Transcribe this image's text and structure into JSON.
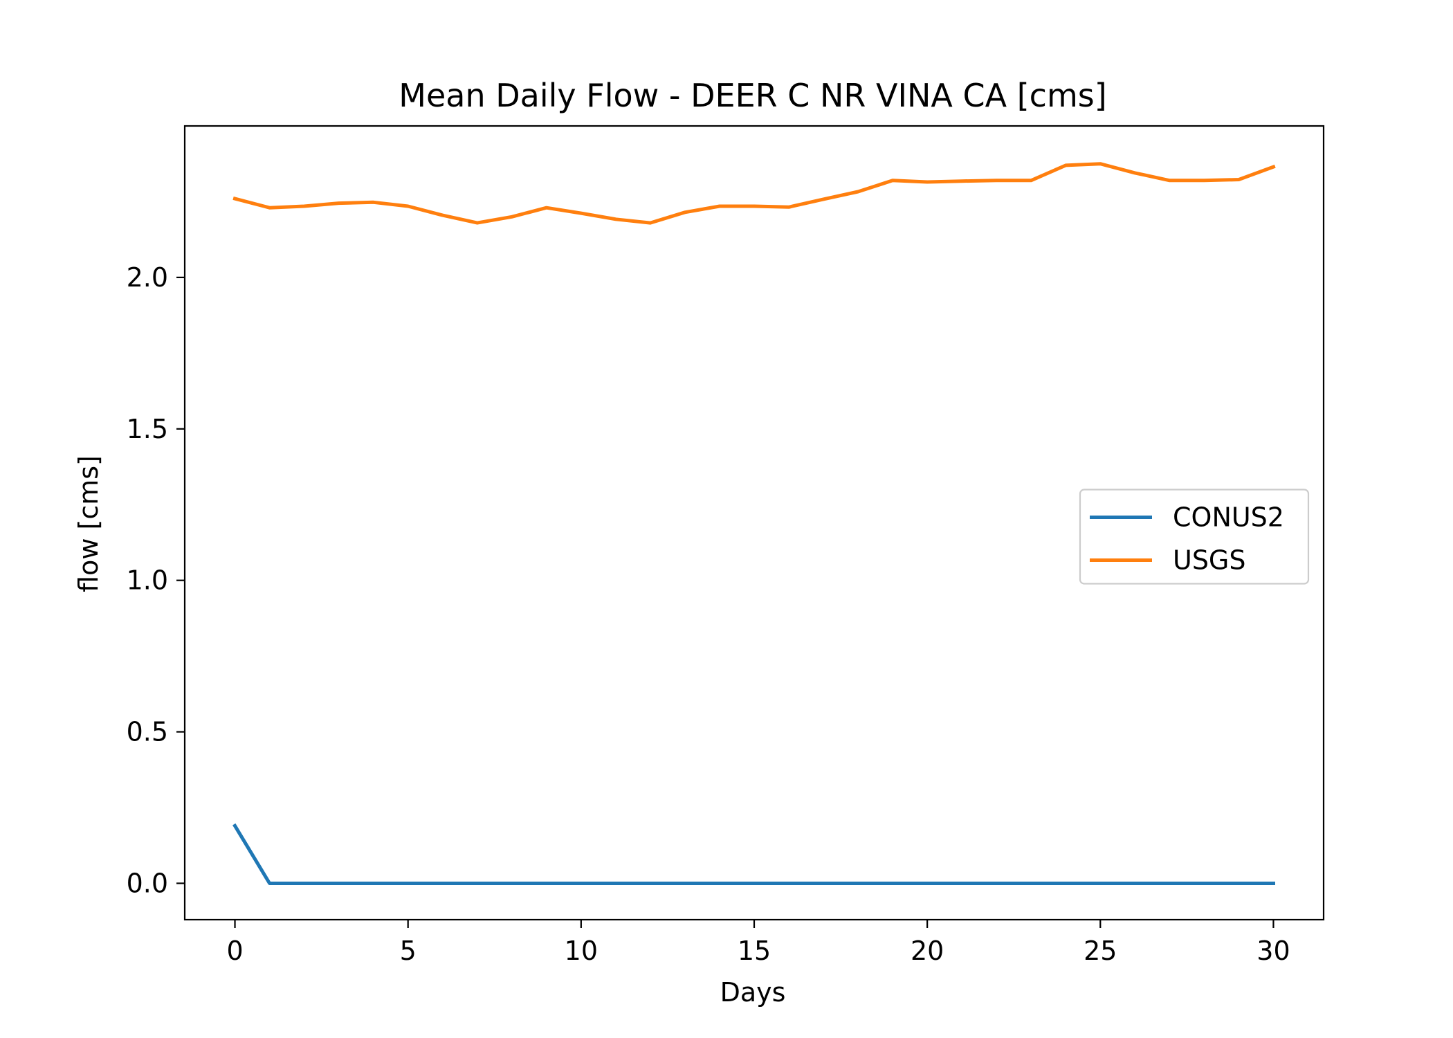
{
  "chart_data": {
    "type": "line",
    "title": "Mean Daily Flow - DEER C NR VINA CA [cms]",
    "xlabel": "Days",
    "ylabel": "flow [cms]",
    "xlim": [
      -1.45,
      31.45
    ],
    "ylim": [
      -0.12,
      2.5
    ],
    "xticks": [
      0,
      5,
      10,
      15,
      20,
      25,
      30
    ],
    "yticks": [
      0.0,
      0.5,
      1.0,
      1.5,
      2.0
    ],
    "ytick_labels": [
      "0.0",
      "0.5",
      "1.0",
      "1.5",
      "2.0"
    ],
    "grid": false,
    "legend_position": "center-right",
    "x": [
      0,
      1,
      2,
      3,
      4,
      5,
      6,
      7,
      8,
      9,
      10,
      11,
      12,
      13,
      14,
      15,
      16,
      17,
      18,
      19,
      20,
      21,
      22,
      23,
      24,
      25,
      26,
      27,
      28,
      29,
      30
    ],
    "series": [
      {
        "name": "CONUS2",
        "color": "#1f77b4",
        "values": [
          0.19,
          0,
          0,
          0,
          0,
          0,
          0,
          0,
          0,
          0,
          0,
          0,
          0,
          0,
          0,
          0,
          0,
          0,
          0,
          0,
          0,
          0,
          0,
          0,
          0,
          0,
          0,
          0,
          0,
          0,
          0
        ]
      },
      {
        "name": "USGS",
        "color": "#ff7f0e",
        "values": [
          2.26,
          2.23,
          2.235,
          2.245,
          2.248,
          2.235,
          2.205,
          2.18,
          2.2,
          2.23,
          2.212,
          2.192,
          2.18,
          2.215,
          2.235,
          2.235,
          2.232,
          2.258,
          2.283,
          2.32,
          2.315,
          2.318,
          2.32,
          2.32,
          2.37,
          2.375,
          2.345,
          2.32,
          2.32,
          2.323,
          2.365
        ]
      }
    ]
  }
}
